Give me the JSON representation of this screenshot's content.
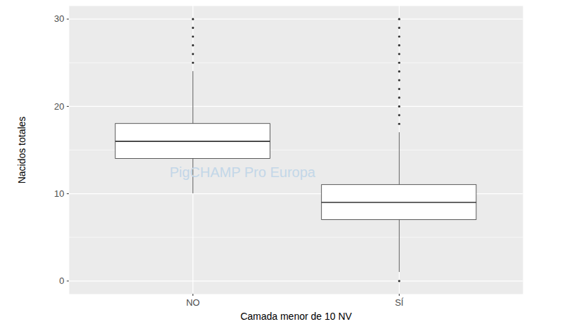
{
  "chart_data": {
    "type": "box",
    "x_label": "Camada menor de 10 NV",
    "y_label": "Nacidos totales",
    "categories": [
      "NO",
      "SÍ"
    ],
    "boxes": [
      {
        "whisker_low": 10,
        "q1": 14,
        "median": 16,
        "q3": 18,
        "whisker_high": 24,
        "outliers": [
          25,
          26,
          27,
          28,
          29,
          30
        ]
      },
      {
        "whisker_low": 1,
        "q1": 7,
        "median": 9,
        "q3": 11,
        "whisker_high": 17,
        "outliers": [
          0,
          18,
          19,
          20,
          21,
          22,
          23,
          24,
          25,
          26,
          27,
          28,
          29,
          30
        ]
      }
    ],
    "ylim": [
      -1.5,
      31.5
    ],
    "yticks": [
      0,
      10,
      20,
      30
    ],
    "grid": true,
    "annotations": [
      {
        "text": "PigCHAMP Pro Europa"
      }
    ]
  }
}
